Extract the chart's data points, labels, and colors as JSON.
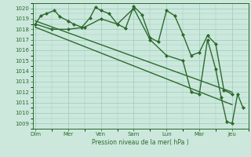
{
  "title": "",
  "xlabel": "Pression niveau de la mer( hPa )",
  "bg_color": "#cce8dd",
  "grid_color": "#99ccbb",
  "line_color": "#2d6a2d",
  "ylim": [
    1008.5,
    1020.5
  ],
  "yticks": [
    1009,
    1010,
    1011,
    1012,
    1013,
    1014,
    1015,
    1016,
    1017,
    1018,
    1019,
    1020
  ],
  "day_labels": [
    "Dim",
    "Mer",
    "Ven",
    "Sam",
    "Lun",
    "Mar",
    "Jeu"
  ],
  "day_positions": [
    0,
    12,
    24,
    36,
    48,
    60,
    72
  ],
  "xlim": [
    -1,
    78
  ],
  "series": [
    {
      "x": [
        0,
        2,
        4,
        7,
        9,
        12,
        14,
        17,
        20,
        22,
        24,
        27,
        30,
        33,
        36,
        39,
        42,
        45,
        48,
        51,
        54,
        57,
        60,
        63,
        66,
        69,
        72
      ],
      "y": [
        1018.5,
        1019.3,
        1019.5,
        1019.8,
        1019.2,
        1018.8,
        1018.5,
        1018.2,
        1019.1,
        1020.1,
        1019.8,
        1019.5,
        1018.5,
        1018.1,
        1020.2,
        1019.4,
        1017.2,
        1016.8,
        1019.8,
        1019.3,
        1017.5,
        1015.5,
        1015.8,
        1017.4,
        1016.6,
        1012.2,
        1011.8
      ],
      "marker": "D",
      "markersize": 2.0,
      "linewidth": 1.0
    },
    {
      "x": [
        0,
        72
      ],
      "y": [
        1018.8,
        1012.0
      ],
      "marker": null,
      "markersize": 0,
      "linewidth": 1.0
    },
    {
      "x": [
        0,
        72
      ],
      "y": [
        1018.2,
        1010.8
      ],
      "marker": null,
      "markersize": 0,
      "linewidth": 1.0
    },
    {
      "x": [
        0,
        6,
        12,
        18,
        24,
        30,
        36,
        42,
        48,
        54,
        57,
        60,
        63,
        66,
        68,
        70,
        72,
        74,
        76
      ],
      "y": [
        1018.5,
        1018.0,
        1018.0,
        1018.2,
        1019.0,
        1018.5,
        1020.0,
        1017.0,
        1015.5,
        1015.0,
        1012.0,
        1011.8,
        1017.0,
        1014.2,
        1011.5,
        1009.2,
        1009.0,
        1011.8,
        1010.5
      ],
      "marker": "D",
      "markersize": 2.0,
      "linewidth": 1.0
    }
  ]
}
